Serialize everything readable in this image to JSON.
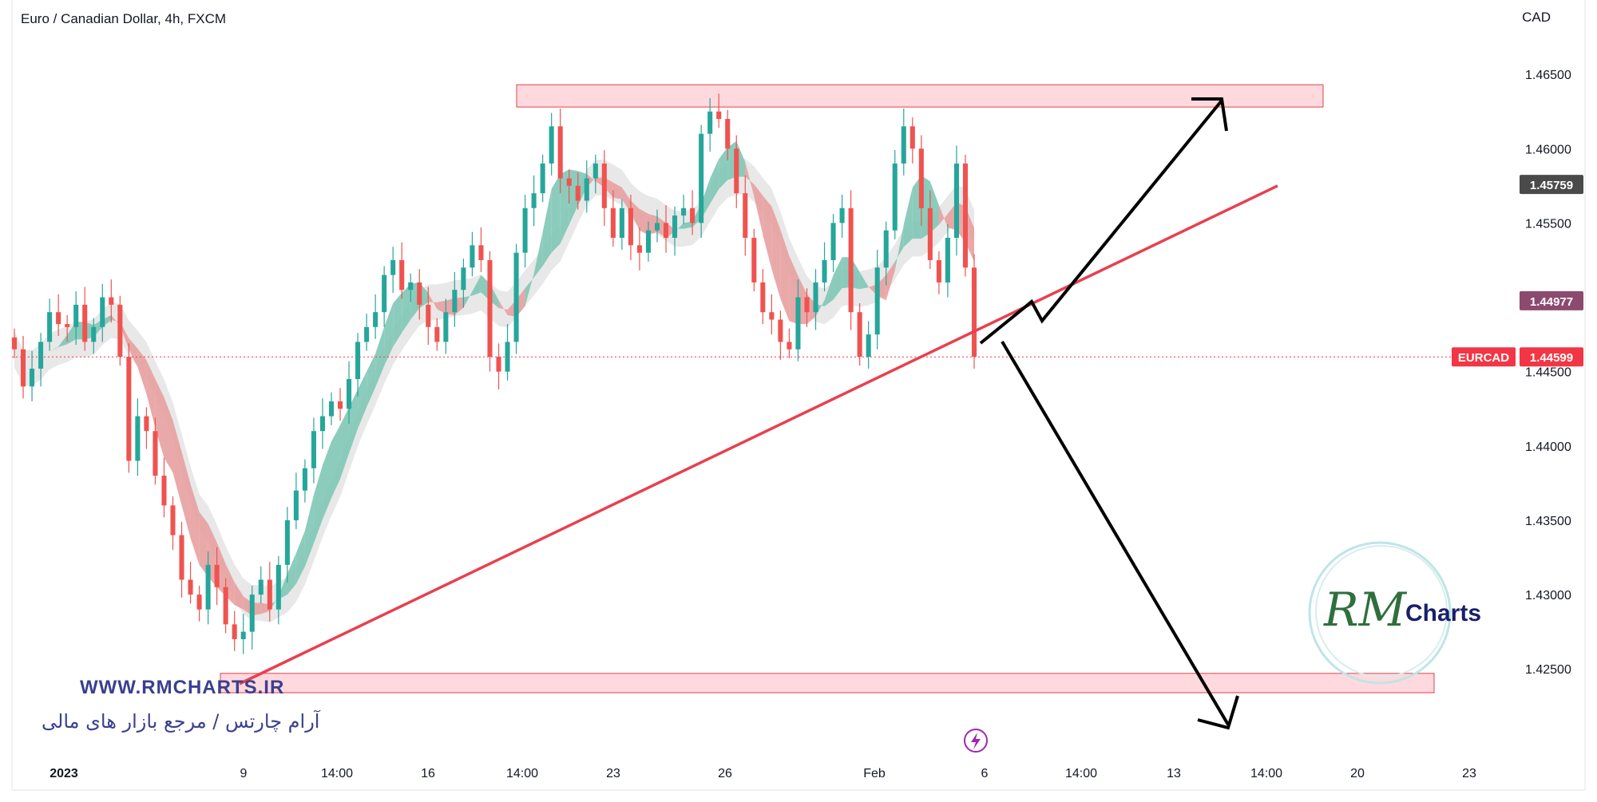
{
  "header": {
    "symbol_title": "Euro / Canadian Dollar, 4h, FXCM",
    "currency": "CAD"
  },
  "watermark": {
    "url": "WWW.RMCHARTS.IR",
    "tagline": "آرام چارتس / مرجع بازار های مالی",
    "logo_script": "RM",
    "logo_text": "Charts"
  },
  "colors": {
    "bull": "#26a69a",
    "bear": "#ef5350",
    "zone_fill": "#ffd9dd",
    "zone_stroke": "#e0414f",
    "trendline": "#e8404f",
    "arrows": "#000000",
    "badge_dark": "#4a4a4a",
    "badge_purple": "#8c4a6e",
    "badge_red": "#f23645",
    "ribbon_bull": "#7fc6b6",
    "ribbon_bear": "#e8a0a0",
    "band": "#e4e4e4"
  },
  "chart_data": {
    "type": "candlestick",
    "title": "Euro / Canadian Dollar, 4h, FXCM",
    "ylabel": "CAD",
    "ylim": [
      1.419,
      1.47
    ],
    "y_ticks": [
      "1.46500",
      "1.46000",
      "1.45500",
      "1.45000",
      "1.44500",
      "1.44000",
      "1.43500",
      "1.43000",
      "1.42500"
    ],
    "x_ticks": [
      "2023",
      "9",
      "14:00",
      "16",
      "14:00",
      "23",
      "26",
      "Feb",
      "6",
      "14:00",
      "13",
      "14:00",
      "20",
      "23"
    ],
    "price_badges": [
      {
        "label": "",
        "value": "1.45759",
        "style": "dark"
      },
      {
        "label": "",
        "value": "1.44977",
        "style": "purple"
      },
      {
        "label": "EURCAD",
        "value": "1.44599",
        "style": "red"
      }
    ],
    "current_price": 1.44599,
    "series": [
      {
        "name": "EURCAD",
        "close": [
          1.4465,
          1.444,
          1.4452,
          1.447,
          1.449,
          1.4482,
          1.448,
          1.4495,
          1.447,
          1.448,
          1.45,
          1.4495,
          1.446,
          1.439,
          1.442,
          1.441,
          1.438,
          1.436,
          1.434,
          1.431,
          1.43,
          1.429,
          1.432,
          1.4305,
          1.428,
          1.427,
          1.4275,
          1.43,
          1.431,
          1.429,
          1.432,
          1.435,
          1.437,
          1.4385,
          1.441,
          1.442,
          1.443,
          1.4425,
          1.4445,
          1.447,
          1.448,
          1.449,
          1.4515,
          1.4525,
          1.4505,
          1.451,
          1.4495,
          1.448,
          1.447,
          1.449,
          1.4505,
          1.452,
          1.4535,
          1.4525,
          1.446,
          1.445,
          1.447,
          1.453,
          1.456,
          1.457,
          1.459,
          1.4615,
          1.458,
          1.4575,
          1.4565,
          1.458,
          1.459,
          1.456,
          1.454,
          1.456,
          1.4535,
          1.453,
          1.4545,
          1.455,
          1.454,
          1.4555,
          1.456,
          1.455,
          1.461,
          1.4625,
          1.462,
          1.46,
          1.457,
          1.454,
          1.451,
          1.449,
          1.4485,
          1.447,
          1.4465,
          1.45,
          1.449,
          1.451,
          1.4525,
          1.455,
          1.456,
          1.449,
          1.446,
          1.4475,
          1.452,
          1.4545,
          1.459,
          1.4615,
          1.46,
          1.456,
          1.4525,
          1.451,
          1.454,
          1.459,
          1.452,
          1.446
        ]
      }
    ],
    "support_zone": {
      "top": 1.4247,
      "bottom": 1.4234
    },
    "resistance_zone": {
      "top": 1.4643,
      "bottom": 1.4628
    },
    "trendline": {
      "from_price": 1.424,
      "to_price": 1.4575
    },
    "projections": [
      "bullish breakout to resistance 1.46500",
      "bearish breakdown to support 1.42500"
    ]
  }
}
